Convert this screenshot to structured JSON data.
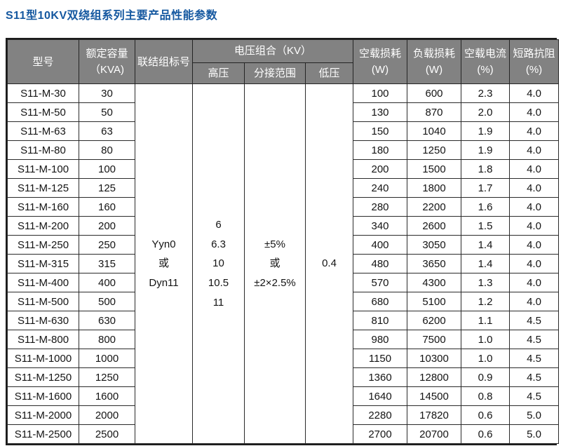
{
  "title": "S11型10KV双绕组系列主要产品性能参数",
  "colors": {
    "title_blue": "#1558a0",
    "header_bg": "#828282",
    "header_text": "#ffffff",
    "grid": "#2a2a2a",
    "body_bg": "#ffffff"
  },
  "table": {
    "headers": {
      "model": "型号",
      "capacity": [
        "额定容量",
        "（KVA)"
      ],
      "connection": "联结组标号",
      "voltage_group": "电压组合（KV）",
      "hv": "高压",
      "tap_range": "分接范围",
      "lv": "低压",
      "no_load_loss": [
        "空载损耗",
        "(W)"
      ],
      "load_loss": [
        "负载损耗",
        "(W)"
      ],
      "no_load_current": [
        "空载电流",
        "(%)"
      ],
      "impedance": [
        "短路抗阻",
        "(%)"
      ]
    },
    "merged_cells": {
      "connection": [
        "Yyn0",
        "或",
        "Dyn11"
      ],
      "hv": [
        "6",
        "6.3",
        "10",
        "10.5",
        "11"
      ],
      "tap_range": [
        "±5%",
        "或",
        "±2×2.5%"
      ],
      "lv": "0.4"
    },
    "rows": [
      [
        "S11-M-30",
        "30",
        "100",
        "600",
        "2.3",
        "4.0"
      ],
      [
        "S11-M-50",
        "50",
        "130",
        "870",
        "2.0",
        "4.0"
      ],
      [
        "S11-M-63",
        "63",
        "150",
        "1040",
        "1.9",
        "4.0"
      ],
      [
        "S11-M-80",
        "80",
        "180",
        "1250",
        "1.9",
        "4.0"
      ],
      [
        "S11-M-100",
        "100",
        "200",
        "1500",
        "1.8",
        "4.0"
      ],
      [
        "S11-M-125",
        "125",
        "240",
        "1800",
        "1.7",
        "4.0"
      ],
      [
        "S11-M-160",
        "160",
        "280",
        "2200",
        "1.6",
        "4.0"
      ],
      [
        "S11-M-200",
        "200",
        "340",
        "2600",
        "1.5",
        "4.0"
      ],
      [
        "S11-M-250",
        "250",
        "400",
        "3050",
        "1.4",
        "4.0"
      ],
      [
        "S11-M-315",
        "315",
        "480",
        "3650",
        "1.4",
        "4.0"
      ],
      [
        "S11-M-400",
        "400",
        "570",
        "4300",
        "1.3",
        "4.0"
      ],
      [
        "S11-M-500",
        "500",
        "680",
        "5100",
        "1.2",
        "4.0"
      ],
      [
        "S11-M-630",
        "630",
        "810",
        "6200",
        "1.1",
        "4.5"
      ],
      [
        "S11-M-800",
        "800",
        "980",
        "7500",
        "1.0",
        "4.5"
      ],
      [
        "S11-M-1000",
        "1000",
        "1150",
        "10300",
        "1.0",
        "4.5"
      ],
      [
        "S11-M-1250",
        "1250",
        "1360",
        "12800",
        "0.9",
        "4.5"
      ],
      [
        "S11-M-1600",
        "1600",
        "1640",
        "14500",
        "0.8",
        "4.5"
      ],
      [
        "S11-M-2000",
        "2000",
        "2280",
        "17820",
        "0.6",
        "5.0"
      ],
      [
        "S11-M-2500",
        "2500",
        "2700",
        "20700",
        "0.6",
        "5.0"
      ]
    ]
  }
}
